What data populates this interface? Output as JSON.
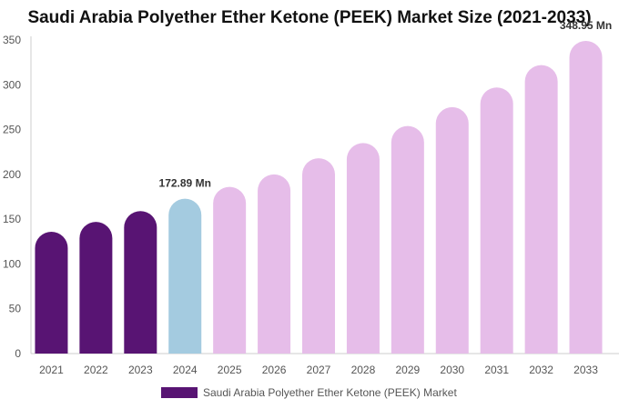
{
  "chart_data": {
    "type": "bar",
    "title": "Saudi Arabia Polyether Ether Ketone (PEEK) Market Size (2021-2033)",
    "categories": [
      "2021",
      "2022",
      "2023",
      "2024",
      "2025",
      "2026",
      "2027",
      "2028",
      "2029",
      "2030",
      "2031",
      "2032",
      "2033"
    ],
    "series": [
      {
        "name": "Saudi Arabia Polyether Ether Ketone (PEEK) Market",
        "values": [
          136,
          147,
          159,
          172.89,
          186,
          200,
          218,
          235,
          254,
          275,
          297,
          322,
          348.95
        ]
      }
    ],
    "ylim": [
      0,
      350
    ],
    "yticks": [
      0,
      50,
      100,
      150,
      200,
      250,
      300,
      350
    ],
    "grid": false,
    "legend_position": "bottom",
    "annotations": [
      {
        "category": "2024",
        "text": "172.89 Mn"
      },
      {
        "category": "2033",
        "text": "348.95 Mn"
      }
    ],
    "colors": {
      "historical": "#581473",
      "base_year": "#a4cbe0",
      "forecast": "#e6bde9",
      "axis": "#cccccc",
      "tick_text": "#555555"
    }
  }
}
